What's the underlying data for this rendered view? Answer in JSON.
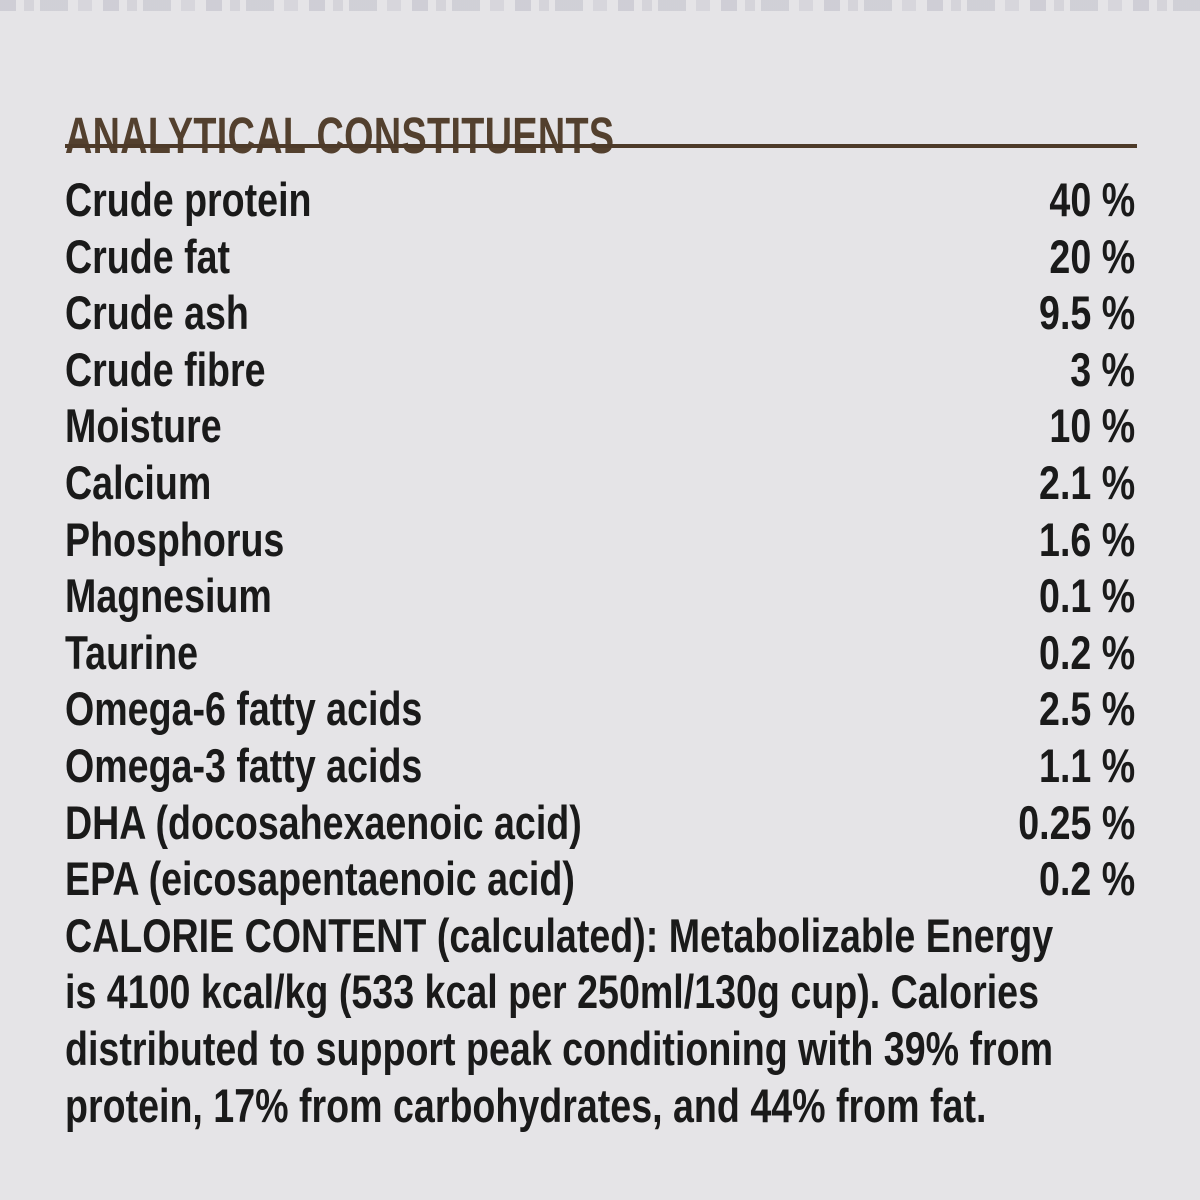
{
  "page": {
    "background_color": "#e5e4e7",
    "accent_color": "#53402e",
    "text_color": "#1a1a1a"
  },
  "header": {
    "title": "ANALYTICAL CONSTITUENTS"
  },
  "table": {
    "rows": [
      {
        "label": "Crude protein",
        "value": "40 %"
      },
      {
        "label": "Crude fat",
        "value": "20 %"
      },
      {
        "label": "Crude ash",
        "value": "9.5 %"
      },
      {
        "label": "Crude fibre",
        "value": "3 %"
      },
      {
        "label": "Moisture",
        "value": "10 %"
      },
      {
        "label": "Calcium",
        "value": "2.1 %"
      },
      {
        "label": "Phosphorus",
        "value": "1.6 %"
      },
      {
        "label": "Magnesium",
        "value": "0.1 %"
      },
      {
        "label": "Taurine",
        "value": "0.2 %"
      },
      {
        "label": "Omega-6 fatty acids",
        "value": "2.5 %"
      },
      {
        "label": "Omega-3 fatty acids",
        "value": "1.1 %"
      },
      {
        "label": "DHA (docosahexaenoic acid)",
        "value": "0.25 %"
      },
      {
        "label": "EPA (eicosapentaenoic acid)",
        "value": "0.2 %"
      }
    ]
  },
  "calorie_content": {
    "lines": [
      "CALORIE CONTENT (calculated): Metabolizable Energy",
      "is 4100 kcal/kg (533 kcal per 250ml/130g cup). Calories",
      "distributed to support peak conditioning with 39% from",
      "protein, 17% from carbohydrates, and 44% from fat."
    ],
    "full_text": "CALORIE CONTENT (calculated): Metabolizable Energy is 4100 kcal/kg (533 kcal per 250ml/130g cup). Calories distributed to support peak conditioning with 39% from protein, 17% from carbohydrates, and 44% from fat."
  }
}
